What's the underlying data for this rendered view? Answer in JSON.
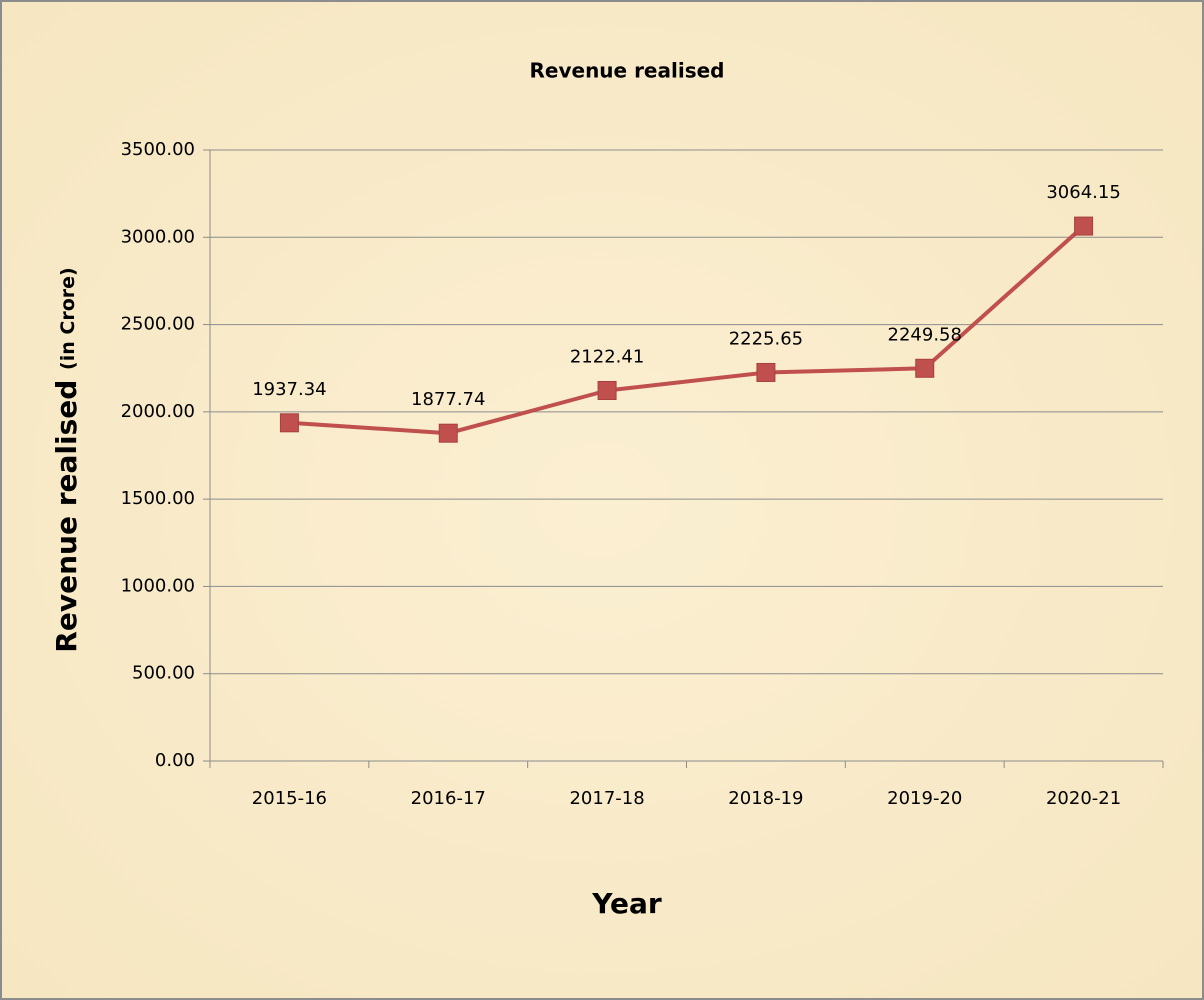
{
  "chart_data": {
    "type": "line",
    "title": "Revenue realised",
    "y_label": "Revenue realised",
    "y_label_unit": "(in Crore)",
    "x_label": "Year",
    "categories": [
      "2015-16",
      "2016-17",
      "2017-18",
      "2018-19",
      "2019-20",
      "2020-21"
    ],
    "series": [
      {
        "name": "Revenue realised",
        "color": "#c0504d",
        "values": [
          1937.34,
          1877.74,
          2122.41,
          2225.65,
          2249.58,
          3064.15
        ]
      }
    ],
    "ylim": [
      0,
      3500
    ],
    "yticks": [
      {
        "value": 0,
        "label": "0.00"
      },
      {
        "value": 500,
        "label": "500.00"
      },
      {
        "value": 1000,
        "label": "1000.00"
      },
      {
        "value": 1500,
        "label": "1500.00"
      },
      {
        "value": 2000,
        "label": "2000.00"
      },
      {
        "value": 2500,
        "label": "2500.00"
      },
      {
        "value": 3000,
        "label": "3000.00"
      },
      {
        "value": 3500,
        "label": "3500.00"
      }
    ],
    "grid": true
  }
}
